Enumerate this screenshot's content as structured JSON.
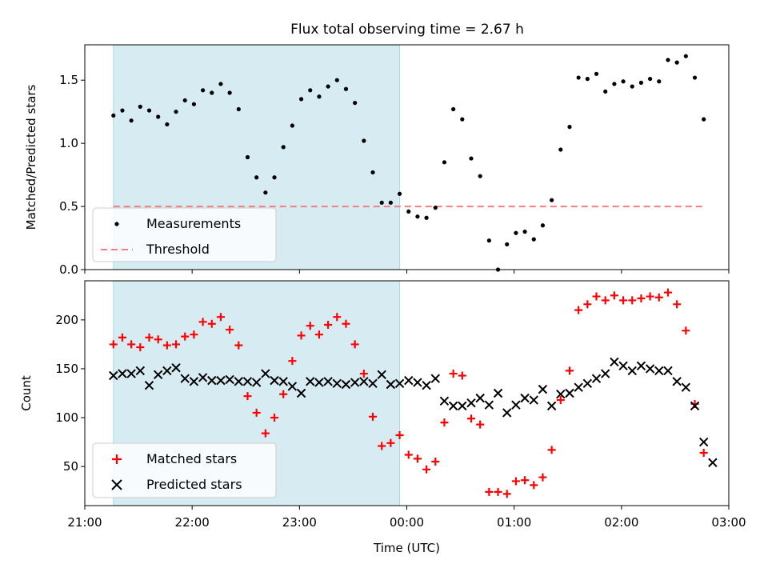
{
  "title": "Flux total observing time = 2.67 h",
  "colors": {
    "shade": "#add8e6",
    "measure": "#000000",
    "threshold": "#f08080",
    "matched": "#ff0000",
    "predicted": "#000000"
  },
  "chart_data": [
    {
      "type": "scatter",
      "ylabel": "Matched/Predicted stars",
      "ylim": [
        0,
        1.78
      ],
      "yticks": [
        "0.0",
        "0.5",
        "1.0",
        "1.5"
      ],
      "xlim": [
        "21:00",
        "03:00"
      ],
      "shaded_span": [
        "21:16",
        "23:56"
      ],
      "threshold": 0.5,
      "legend": {
        "placement": "lower-left",
        "items": [
          "Measurements",
          "Threshold"
        ]
      },
      "series": [
        {
          "name": "Measurements",
          "points": [
            [
              "21:16",
              1.22
            ],
            [
              "21:21",
              1.26
            ],
            [
              "21:26",
              1.18
            ],
            [
              "21:31",
              1.29
            ],
            [
              "21:36",
              1.26
            ],
            [
              "21:41",
              1.21
            ],
            [
              "21:46",
              1.15
            ],
            [
              "21:51",
              1.25
            ],
            [
              "21:56",
              1.34
            ],
            [
              "22:01",
              1.31
            ],
            [
              "22:06",
              1.42
            ],
            [
              "22:11",
              1.4
            ],
            [
              "22:16",
              1.47
            ],
            [
              "22:21",
              1.4
            ],
            [
              "22:26",
              1.27
            ],
            [
              "22:31",
              0.89
            ],
            [
              "22:36",
              0.73
            ],
            [
              "22:41",
              0.61
            ],
            [
              "22:46",
              0.73
            ],
            [
              "22:51",
              0.97
            ],
            [
              "22:56",
              1.14
            ],
            [
              "23:01",
              1.35
            ],
            [
              "23:06",
              1.42
            ],
            [
              "23:11",
              1.37
            ],
            [
              "23:16",
              1.45
            ],
            [
              "23:21",
              1.5
            ],
            [
              "23:26",
              1.43
            ],
            [
              "23:31",
              1.32
            ],
            [
              "23:36",
              1.02
            ],
            [
              "23:41",
              0.77
            ],
            [
              "23:46",
              0.53
            ],
            [
              "23:51",
              0.53
            ],
            [
              "23:56",
              0.6
            ],
            [
              "00:01",
              0.46
            ],
            [
              "00:06",
              0.42
            ],
            [
              "00:11",
              0.41
            ],
            [
              "00:16",
              0.49
            ],
            [
              "00:21",
              0.85
            ],
            [
              "00:26",
              1.27
            ],
            [
              "00:31",
              1.19
            ],
            [
              "00:36",
              0.88
            ],
            [
              "00:41",
              0.74
            ],
            [
              "00:46",
              0.23
            ],
            [
              "00:51",
              0.0
            ],
            [
              "00:56",
              0.2
            ],
            [
              "01:01",
              0.29
            ],
            [
              "01:06",
              0.3
            ],
            [
              "01:11",
              0.24
            ],
            [
              "01:16",
              0.35
            ],
            [
              "01:21",
              0.55
            ],
            [
              "01:26",
              0.95
            ],
            [
              "01:31",
              1.13
            ],
            [
              "01:36",
              1.52
            ],
            [
              "01:41",
              1.51
            ],
            [
              "01:46",
              1.55
            ],
            [
              "01:51",
              1.41
            ],
            [
              "01:56",
              1.47
            ],
            [
              "02:01",
              1.49
            ],
            [
              "02:06",
              1.45
            ],
            [
              "02:11",
              1.48
            ],
            [
              "02:16",
              1.51
            ],
            [
              "02:21",
              1.49
            ],
            [
              "02:26",
              1.66
            ],
            [
              "02:31",
              1.64
            ],
            [
              "02:36",
              1.69
            ],
            [
              "02:41",
              1.52
            ],
            [
              "02:46",
              1.19
            ]
          ]
        },
        {
          "name": "Threshold",
          "line": [
            [
              "21:16",
              0.5
            ],
            [
              "02:46",
              0.5
            ]
          ]
        }
      ]
    },
    {
      "type": "scatter",
      "ylabel": "Count",
      "xlabel": "Time (UTC)",
      "ylim": [
        10,
        240
      ],
      "yticks": [
        "50",
        "100",
        "150",
        "200"
      ],
      "xticks": [
        "21:00",
        "22:00",
        "23:00",
        "00:00",
        "01:00",
        "02:00",
        "03:00"
      ],
      "xlim": [
        "21:00",
        "03:00"
      ],
      "shaded_span": [
        "21:16",
        "23:56"
      ],
      "legend": {
        "placement": "lower-left",
        "items": [
          "Matched stars",
          "Predicted stars"
        ]
      },
      "series": [
        {
          "name": "Matched stars",
          "points": [
            [
              "21:16",
              175
            ],
            [
              "21:21",
              182
            ],
            [
              "21:26",
              175
            ],
            [
              "21:31",
              172
            ],
            [
              "21:36",
              182
            ],
            [
              "21:41",
              180
            ],
            [
              "21:46",
              174
            ],
            [
              "21:51",
              175
            ],
            [
              "21:56",
              183
            ],
            [
              "22:01",
              185
            ],
            [
              "22:06",
              198
            ],
            [
              "22:11",
              196
            ],
            [
              "22:16",
              203
            ],
            [
              "22:21",
              190
            ],
            [
              "22:26",
              174
            ],
            [
              "22:31",
              122
            ],
            [
              "22:36",
              105
            ],
            [
              "22:41",
              84
            ],
            [
              "22:46",
              100
            ],
            [
              "22:51",
              124
            ],
            [
              "22:56",
              158
            ],
            [
              "23:01",
              184
            ],
            [
              "23:06",
              194
            ],
            [
              "23:11",
              185
            ],
            [
              "23:16",
              195
            ],
            [
              "23:21",
              203
            ],
            [
              "23:26",
              196
            ],
            [
              "23:31",
              175
            ],
            [
              "23:36",
              145
            ],
            [
              "23:41",
              101
            ],
            [
              "23:46",
              71
            ],
            [
              "23:51",
              74
            ],
            [
              "23:56",
              82
            ],
            [
              "00:01",
              62
            ],
            [
              "00:06",
              58
            ],
            [
              "00:11",
              47
            ],
            [
              "00:16",
              55
            ],
            [
              "00:21",
              95
            ],
            [
              "00:26",
              145
            ],
            [
              "00:31",
              143
            ],
            [
              "00:36",
              99
            ],
            [
              "00:41",
              93
            ],
            [
              "00:46",
              24
            ],
            [
              "00:51",
              24
            ],
            [
              "00:56",
              22
            ],
            [
              "01:01",
              35
            ],
            [
              "01:06",
              36
            ],
            [
              "01:11",
              31
            ],
            [
              "01:16",
              39
            ],
            [
              "01:21",
              67
            ],
            [
              "01:26",
              118
            ],
            [
              "01:31",
              148
            ],
            [
              "01:36",
              210
            ],
            [
              "01:41",
              216
            ],
            [
              "01:46",
              224
            ],
            [
              "01:51",
              220
            ],
            [
              "01:56",
              225
            ],
            [
              "02:01",
              220
            ],
            [
              "02:06",
              220
            ],
            [
              "02:11",
              222
            ],
            [
              "02:16",
              224
            ],
            [
              "02:21",
              223
            ],
            [
              "02:26",
              228
            ],
            [
              "02:31",
              216
            ],
            [
              "02:36",
              189
            ],
            [
              "02:41",
              114
            ],
            [
              "02:46",
              64
            ]
          ]
        },
        {
          "name": "Predicted stars",
          "points": [
            [
              "21:16",
              143
            ],
            [
              "21:21",
              145
            ],
            [
              "21:26",
              145
            ],
            [
              "21:31",
              148
            ],
            [
              "21:36",
              133
            ],
            [
              "21:41",
              144
            ],
            [
              "21:46",
              148
            ],
            [
              "21:51",
              151
            ],
            [
              "21:56",
              140
            ],
            [
              "22:01",
              137
            ],
            [
              "22:06",
              141
            ],
            [
              "22:11",
              138
            ],
            [
              "22:16",
              138
            ],
            [
              "22:21",
              139
            ],
            [
              "22:26",
              137
            ],
            [
              "22:31",
              137
            ],
            [
              "22:36",
              136
            ],
            [
              "22:41",
              145
            ],
            [
              "22:46",
              138
            ],
            [
              "22:51",
              137
            ],
            [
              "22:56",
              132
            ],
            [
              "23:01",
              125
            ],
            [
              "23:06",
              137
            ],
            [
              "23:11",
              136
            ],
            [
              "23:16",
              137
            ],
            [
              "23:21",
              135
            ],
            [
              "23:26",
              134
            ],
            [
              "23:31",
              136
            ],
            [
              "23:36",
              137
            ],
            [
              "23:41",
              135
            ],
            [
              "23:46",
              144
            ],
            [
              "23:51",
              134
            ],
            [
              "23:56",
              135
            ],
            [
              "00:01",
              138
            ],
            [
              "00:06",
              136
            ],
            [
              "00:11",
              133
            ],
            [
              "00:16",
              140
            ],
            [
              "00:21",
              117
            ],
            [
              "00:26",
              112
            ],
            [
              "00:31",
              112
            ],
            [
              "00:36",
              115
            ],
            [
              "00:41",
              120
            ],
            [
              "00:46",
              113
            ],
            [
              "00:51",
              125
            ],
            [
              "00:56",
              105
            ],
            [
              "01:01",
              113
            ],
            [
              "01:06",
              120
            ],
            [
              "01:11",
              118
            ],
            [
              "01:16",
              129
            ],
            [
              "01:21",
              112
            ],
            [
              "01:26",
              124
            ],
            [
              "01:31",
              125
            ],
            [
              "01:36",
              131
            ],
            [
              "01:41",
              135
            ],
            [
              "01:46",
              140
            ],
            [
              "01:51",
              145
            ],
            [
              "01:56",
              157
            ],
            [
              "02:01",
              153
            ],
            [
              "02:06",
              148
            ],
            [
              "02:11",
              153
            ],
            [
              "02:16",
              150
            ],
            [
              "02:21",
              148
            ],
            [
              "02:26",
              148
            ],
            [
              "02:31",
              137
            ],
            [
              "02:36",
              131
            ],
            [
              "02:41",
              112
            ],
            [
              "02:46",
              75
            ],
            [
              "02:51",
              54
            ]
          ]
        }
      ]
    }
  ]
}
